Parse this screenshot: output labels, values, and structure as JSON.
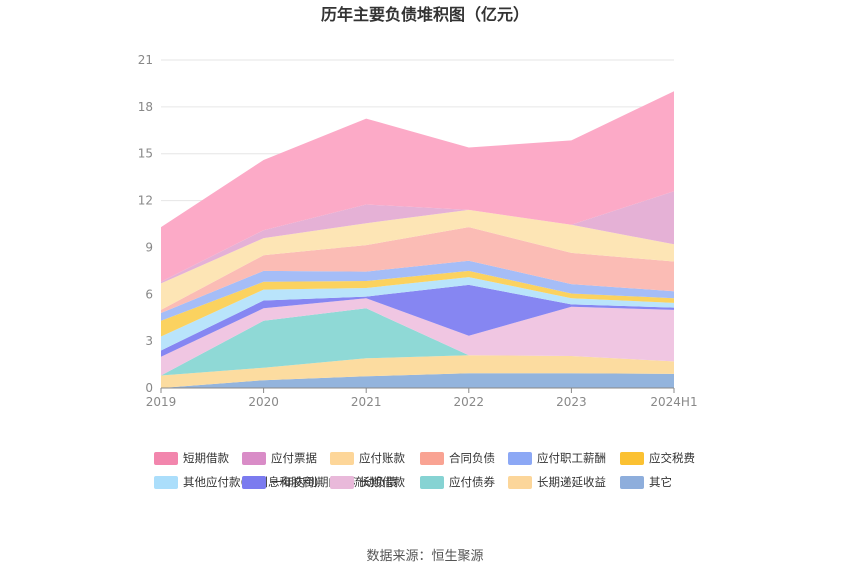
{
  "chart_data": {
    "type": "area",
    "stacked": true,
    "title": "历年主要负债堆积图（亿元）",
    "categories": [
      "2019",
      "2020",
      "2021",
      "2022",
      "2023",
      "2024H1"
    ],
    "ylim": [
      0,
      21
    ],
    "yticks": [
      0,
      3,
      6,
      9,
      12,
      15,
      18,
      21
    ],
    "grid": true,
    "legend_position": "bottom",
    "source": "数据来源：恒生聚源",
    "series": [
      {
        "name": "其它",
        "color": "#93b4dd",
        "values": [
          0.0,
          0.5,
          0.75,
          0.95,
          0.95,
          0.9
        ]
      },
      {
        "name": "长期递延收益",
        "color": "#fcdca0",
        "values": [
          0.8,
          0.8,
          1.15,
          1.15,
          1.1,
          0.8
        ]
      },
      {
        "name": "应付债券",
        "color": "#8fd9d6",
        "values": [
          0.0,
          3.0,
          3.2,
          0.0,
          0.0,
          0.0
        ]
      },
      {
        "name": "长期借款",
        "color": "#f0c6e2",
        "values": [
          1.2,
          0.8,
          0.65,
          1.25,
          3.15,
          3.3
        ]
      },
      {
        "name": "一年内到期的非流动负债",
        "color": "#8686f2",
        "values": [
          0.4,
          0.5,
          0.1,
          3.25,
          0.15,
          0.15
        ]
      },
      {
        "name": "其他应付款(含利息和股利)",
        "color": "#b9e4fb",
        "values": [
          0.9,
          0.7,
          0.55,
          0.5,
          0.4,
          0.3
        ]
      },
      {
        "name": "应交税费",
        "color": "#fbd25f",
        "values": [
          1.0,
          0.5,
          0.45,
          0.4,
          0.3,
          0.3
        ]
      },
      {
        "name": "应付职工薪酬",
        "color": "#a5bdf7",
        "values": [
          0.5,
          0.7,
          0.6,
          0.65,
          0.6,
          0.45
        ]
      },
      {
        "name": "合同负债",
        "color": "#fbbcb5",
        "values": [
          0.2,
          1.0,
          1.7,
          2.15,
          2.0,
          1.9
        ]
      },
      {
        "name": "应付账款",
        "color": "#fde5b5",
        "values": [
          1.7,
          1.1,
          1.4,
          1.1,
          1.8,
          1.1
        ]
      },
      {
        "name": "应付票据",
        "color": "#e5b1d6",
        "values": [
          0.1,
          0.5,
          1.2,
          0.0,
          0.0,
          3.4
        ]
      },
      {
        "name": "短期借款",
        "color": "#fcaac7",
        "values": [
          3.5,
          4.5,
          5.5,
          4.0,
          5.4,
          6.4
        ]
      }
    ],
    "legend_order": [
      "短期借款",
      "应付票据",
      "应付账款",
      "合同负债",
      "应付职工薪酬",
      "应交税费",
      "其他应付款(含利息和股利)",
      "一年内到期的非流动负债",
      "长期借款",
      "应付债券",
      "长期递延收益",
      "其它"
    ],
    "legend_colors": {
      "短期借款": "#f286ad",
      "应付票据": "#d98cc7",
      "应付账款": "#fdd699",
      "合同负债": "#f9a393",
      "应付职工薪酬": "#8ca8f5",
      "应交税费": "#fbc132",
      "其他应付款(含利息和股利)": "#abdefb",
      "一年内到期的非流动负债": "#7b7bef",
      "长期借款": "#e9b9da",
      "应付债券": "#86d3d3",
      "长期递延收益": "#fcd69a",
      "其它": "#8eaedc"
    }
  }
}
